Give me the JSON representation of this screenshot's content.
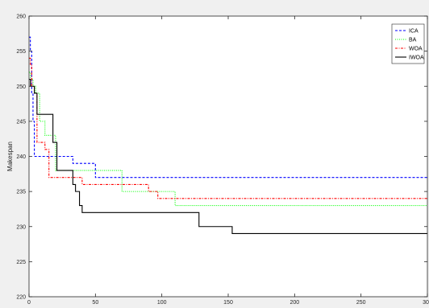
{
  "chart_data": {
    "type": "line",
    "title": "",
    "xlabel": "",
    "ylabel": "Makespan",
    "xlim": [
      0,
      300
    ],
    "ylim": [
      220,
      260
    ],
    "xticks": [
      0,
      50,
      100,
      150,
      200,
      250,
      300
    ],
    "yticks": [
      220,
      225,
      230,
      235,
      240,
      245,
      250,
      255,
      260
    ],
    "grid": false,
    "legend_position": "top-right",
    "series": [
      {
        "name": "ICA",
        "color": "#0000ff",
        "style": "dashed",
        "x": [
          0,
          1,
          1,
          2,
          2,
          3,
          3,
          4,
          4,
          33,
          33,
          50,
          50,
          300
        ],
        "y": [
          257,
          257,
          255,
          255,
          249,
          249,
          245,
          245,
          240,
          240,
          239,
          239,
          237,
          237
        ]
      },
      {
        "name": "BA",
        "color": "#00ff00",
        "style": "dotted",
        "x": [
          0,
          1,
          1,
          3,
          3,
          5,
          5,
          8,
          8,
          12,
          12,
          20,
          20,
          50,
          50,
          70,
          70,
          110,
          110,
          300
        ],
        "y": [
          252,
          252,
          251,
          251,
          250,
          250,
          249,
          249,
          245,
          245,
          243,
          243,
          238,
          238,
          238,
          238,
          235,
          235,
          233,
          233
        ]
      },
      {
        "name": "WOA",
        "color": "#ff0000",
        "style": "dashdot",
        "x": [
          0,
          1,
          1,
          2,
          2,
          4,
          4,
          6,
          6,
          12,
          12,
          15,
          15,
          40,
          40,
          90,
          90,
          97,
          97,
          300
        ],
        "y": [
          254,
          254,
          253,
          253,
          250,
          250,
          249,
          249,
          242,
          242,
          241,
          241,
          237,
          237,
          236,
          236,
          235,
          235,
          234,
          234
        ]
      },
      {
        "name": "IWOA",
        "color": "#000000",
        "style": "solid",
        "x": [
          0,
          1,
          1,
          4,
          4,
          6,
          6,
          18,
          18,
          21,
          21,
          33,
          33,
          35,
          35,
          38,
          38,
          40,
          40,
          128,
          128,
          153,
          153,
          300
        ],
        "y": [
          251,
          251,
          250,
          250,
          249,
          249,
          246,
          246,
          242,
          242,
          238,
          238,
          236,
          236,
          235,
          235,
          233,
          233,
          232,
          232,
          230,
          230,
          229,
          229
        ]
      }
    ]
  }
}
